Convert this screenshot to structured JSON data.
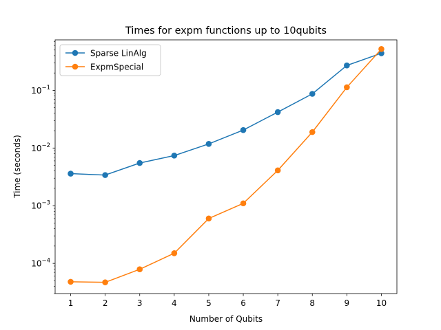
{
  "chart_data": {
    "type": "line",
    "title": "Times for expm functions up to 10qubits",
    "xlabel": "Number of Qubits",
    "ylabel": "Time (seconds)",
    "y_scale": "log",
    "xlim": [
      0.55,
      10.45
    ],
    "ylim": [
      3e-05,
      0.75
    ],
    "x": [
      1,
      2,
      3,
      4,
      5,
      6,
      7,
      8,
      9,
      10
    ],
    "x_ticks": [
      "1",
      "2",
      "3",
      "4",
      "5",
      "6",
      "7",
      "8",
      "9",
      "10"
    ],
    "y_ticks": [
      {
        "value": 0.0001,
        "base": "10",
        "exp": "−4"
      },
      {
        "value": 0.001,
        "base": "10",
        "exp": "−3"
      },
      {
        "value": 0.01,
        "base": "10",
        "exp": "−2"
      },
      {
        "value": 0.1,
        "base": "10",
        "exp": "−1"
      }
    ],
    "grid": false,
    "legend_position": "top-left",
    "series": [
      {
        "name": "Sparse LinAlg",
        "color": "#1f77b4",
        "values": [
          0.0036,
          0.0034,
          0.0055,
          0.0074,
          0.0118,
          0.0205,
          0.042,
          0.087,
          0.27,
          0.44
        ]
      },
      {
        "name": "ExpmSpecial",
        "color": "#ff7f0e",
        "values": [
          4.8e-05,
          4.7e-05,
          7.9e-05,
          0.00015,
          0.0006,
          0.0011,
          0.0041,
          0.0189,
          0.113,
          0.52
        ]
      }
    ]
  }
}
